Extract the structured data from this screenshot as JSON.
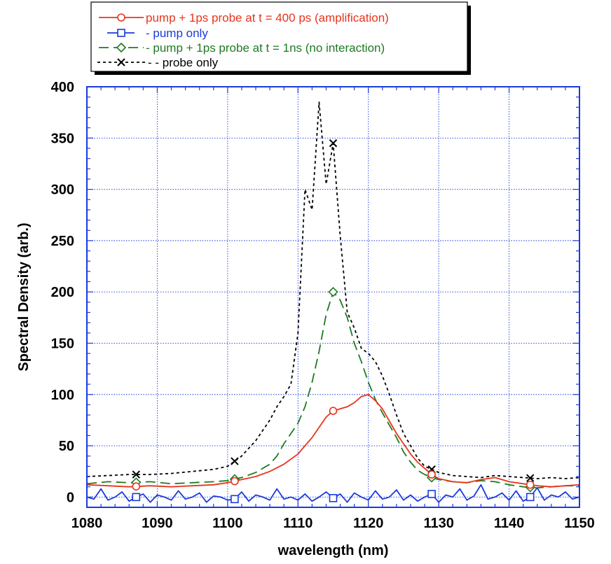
{
  "chart_data": {
    "type": "line",
    "title": "",
    "xlabel": "wavelength  (nm)",
    "ylabel": "Spectral  Density  (arb.)",
    "xlim": [
      1080,
      1150
    ],
    "ylim": [
      -10,
      400
    ],
    "xticks": [
      1080,
      1090,
      1100,
      1110,
      1120,
      1130,
      1140,
      1150
    ],
    "yticks": [
      0,
      50,
      100,
      150,
      200,
      250,
      300,
      350,
      400
    ],
    "xtick_labels": [
      "1080",
      "1090",
      "1100",
      "1110",
      "1120",
      "1130",
      "1140",
      "1150"
    ],
    "ytick_labels": [
      "0",
      "50",
      "100",
      "150",
      "200",
      "250",
      "300",
      "350",
      "400"
    ],
    "grid": true,
    "legend_position": "top-left, above plot",
    "series": [
      {
        "name": "pump + 1ps probe at t = 400 ps (amplification)",
        "color": "#e8341c",
        "dash": "solid",
        "marker": "circle",
        "marker_x": [
          1087,
          1101,
          1115,
          1129,
          1143
        ],
        "x": [
          1080,
          1083,
          1086,
          1089,
          1092,
          1095,
          1098,
          1100,
          1102,
          1104,
          1106,
          1108,
          1110,
          1111,
          1112,
          1113,
          1114,
          1115,
          1116,
          1117,
          1118,
          1119,
          1120,
          1121,
          1122,
          1123,
          1124,
          1125,
          1126,
          1127,
          1128,
          1129,
          1130,
          1132,
          1134,
          1136,
          1138,
          1140,
          1142,
          1144,
          1146,
          1148,
          1150
        ],
        "y": [
          12,
          11,
          10,
          11,
          10,
          11,
          12,
          14,
          17,
          20,
          25,
          32,
          42,
          50,
          58,
          68,
          78,
          84,
          86,
          88,
          92,
          98,
          100,
          94,
          86,
          74,
          62,
          52,
          42,
          34,
          28,
          22,
          18,
          15,
          14,
          17,
          19,
          15,
          13,
          11,
          10,
          11,
          12
        ]
      },
      {
        "name": "pump only",
        "color": "#1a3adc",
        "dash": "solid",
        "marker": "square",
        "marker_x": [
          1087,
          1101,
          1115,
          1129,
          1143
        ],
        "x": [
          1080,
          1081,
          1082,
          1083,
          1084,
          1085,
          1086,
          1087,
          1088,
          1089,
          1090,
          1091,
          1092,
          1093,
          1094,
          1095,
          1096,
          1097,
          1098,
          1099,
          1100,
          1101,
          1102,
          1103,
          1104,
          1105,
          1106,
          1107,
          1108,
          1109,
          1110,
          1111,
          1112,
          1113,
          1114,
          1115,
          1116,
          1117,
          1118,
          1119,
          1120,
          1121,
          1122,
          1123,
          1124,
          1125,
          1126,
          1127,
          1128,
          1129,
          1130,
          1131,
          1132,
          1133,
          1134,
          1135,
          1136,
          1137,
          1138,
          1139,
          1140,
          1141,
          1142,
          1143,
          1144,
          1145,
          1146,
          1147,
          1148,
          1149,
          1150
        ],
        "y": [
          0,
          -2,
          8,
          -3,
          0,
          5,
          -4,
          0,
          3,
          -5,
          2,
          0,
          -3,
          6,
          -2,
          0,
          4,
          -5,
          1,
          0,
          -3,
          -2,
          5,
          -4,
          2,
          0,
          -3,
          8,
          -2,
          0,
          -3,
          3,
          -4,
          0,
          5,
          -1,
          3,
          -5,
          4,
          0,
          -3,
          6,
          -2,
          0,
          7,
          -3,
          2,
          -4,
          0,
          3,
          -5,
          2,
          0,
          8,
          -3,
          1,
          12,
          -2,
          0,
          4,
          -3,
          6,
          -4,
          0,
          9,
          -3,
          2,
          0,
          5,
          -2,
          0
        ]
      },
      {
        "name": "pump + 1ps probe at t = 1ns (no interaction)",
        "color": "#1e7a22",
        "dash": "long-dash",
        "marker": "diamond",
        "marker_x": [
          1087,
          1101,
          1115,
          1129,
          1143
        ],
        "x": [
          1080,
          1083,
          1086,
          1089,
          1092,
          1095,
          1098,
          1100,
          1102,
          1104,
          1106,
          1107,
          1108,
          1109,
          1110,
          1111,
          1112,
          1113,
          1114,
          1115,
          1116,
          1117,
          1118,
          1119,
          1120,
          1121,
          1122,
          1123,
          1124,
          1125,
          1126,
          1127,
          1128,
          1129,
          1130,
          1132,
          1134,
          1136,
          1138,
          1140,
          1142,
          1144,
          1146,
          1148,
          1150
        ],
        "y": [
          13,
          15,
          14,
          15,
          13,
          14,
          15,
          16,
          19,
          24,
          32,
          40,
          52,
          62,
          72,
          88,
          112,
          142,
          178,
          200,
          192,
          175,
          150,
          132,
          112,
          95,
          82,
          70,
          58,
          44,
          34,
          26,
          22,
          19,
          17,
          15,
          14,
          16,
          15,
          12,
          10,
          9,
          10,
          11,
          11
        ]
      },
      {
        "name": "probe only",
        "color": "#000000",
        "dash": "short-dash",
        "marker": "cross",
        "marker_x": [
          1087,
          1101,
          1115,
          1129,
          1143
        ],
        "x": [
          1080,
          1083,
          1086,
          1089,
          1092,
          1095,
          1098,
          1100,
          1102,
          1104,
          1106,
          1107,
          1108,
          1109,
          1110,
          1111,
          1112,
          1113,
          1114,
          1115,
          1116,
          1117,
          1118,
          1119,
          1120,
          1121,
          1122,
          1123,
          1124,
          1125,
          1126,
          1127,
          1128,
          1129,
          1130,
          1132,
          1134,
          1136,
          1138,
          1140,
          1142,
          1144,
          1146,
          1148,
          1150
        ],
        "y": [
          20,
          21,
          22,
          22,
          23,
          25,
          27,
          30,
          40,
          55,
          75,
          88,
          98,
          110,
          160,
          300,
          280,
          385,
          305,
          345,
          255,
          180,
          165,
          145,
          140,
          132,
          118,
          100,
          80,
          62,
          50,
          38,
          30,
          27,
          24,
          21,
          20,
          19,
          21,
          20,
          19,
          18,
          19,
          18,
          19
        ]
      }
    ]
  }
}
